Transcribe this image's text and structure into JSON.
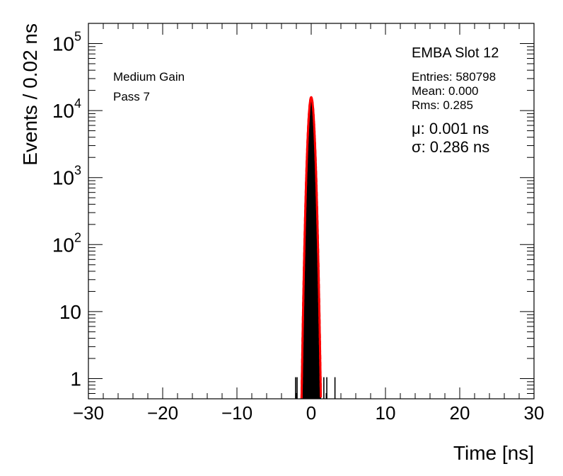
{
  "chart_data": {
    "type": "histogram",
    "xlabel": "Time [ns]",
    "ylabel": "Events / 0.02 ns",
    "xlim": [
      -30,
      30
    ],
    "ylim": [
      0.5,
      200000
    ],
    "y_scale": "log",
    "x_ticks": [
      -30,
      -20,
      -10,
      0,
      10,
      20,
      30
    ],
    "x_tick_labels": [
      "−30",
      "−20",
      "−10",
      "0",
      "10",
      "20",
      "30"
    ],
    "y_ticks": [
      {
        "value": 1,
        "base": "1",
        "exp": ""
      },
      {
        "value": 10,
        "base": "10",
        "exp": ""
      },
      {
        "value": 100,
        "base": "10",
        "exp": "2"
      },
      {
        "value": 1000,
        "base": "10",
        "exp": "3"
      },
      {
        "value": 10000,
        "base": "10",
        "exp": "4"
      },
      {
        "value": 100000,
        "base": "10",
        "exp": "5"
      }
    ],
    "annotations": {
      "left": [
        "Medium Gain",
        "Pass 7"
      ],
      "title": "EMBA Slot 12",
      "stats": [
        "Entries: 580798",
        "Mean: 0.000",
        "Rms: 0.285"
      ],
      "fit": [
        "μ: 0.001 ns",
        "σ: 0.286 ns"
      ]
    },
    "histogram": {
      "name": "Entries",
      "color": "#000000",
      "mean": 0.0,
      "rms": 0.285,
      "entries": 580798,
      "outliers": [
        {
          "x": -2.1,
          "y": 1
        },
        {
          "x": -1.9,
          "y": 1
        },
        {
          "x": -1.1,
          "y": 4
        },
        {
          "x": 1.7,
          "y": 1
        },
        {
          "x": 2.1,
          "y": 1
        },
        {
          "x": 3.2,
          "y": 1
        }
      ]
    },
    "fit": {
      "type": "gaussian",
      "color": "#ff0000",
      "mu": 0.001,
      "sigma": 0.286,
      "peak": 15800
    }
  }
}
